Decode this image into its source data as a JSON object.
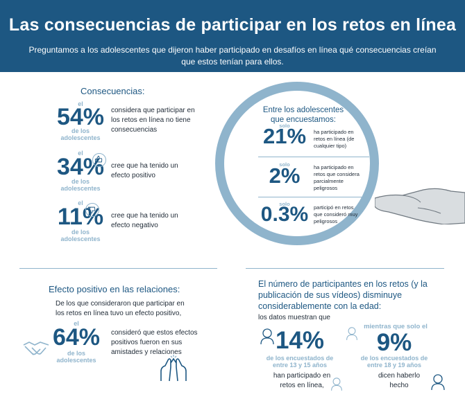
{
  "header": {
    "title": "Las consecuencias de participar en los retos en línea",
    "subtitle": "Preguntamos a los adolescentes que dijeron haber participado en desafíos en línea qué consecuencias creían que estos tenían para ellos."
  },
  "consequences": {
    "heading": "Consecuencias:",
    "items": [
      {
        "prefix": "el",
        "pct": "54%",
        "suffix": "de los adolescentes",
        "text": "considera que participar en los retos en línea no tiene consecuencias"
      },
      {
        "prefix": "el",
        "pct": "34%",
        "suffix": "de los adolescentes",
        "text": "cree que ha tenido un efecto positivo",
        "icon": "thumbs-up-icon"
      },
      {
        "prefix": "el",
        "pct": "11%",
        "suffix": "de los adolescentes",
        "text": "cree que ha tenido un efecto negativo",
        "icon": "thumbs-down-icon"
      }
    ]
  },
  "lens": {
    "heading": "Entre los adolescentes que encuestamos:",
    "items": [
      {
        "prefix": "solo",
        "pct": "21%",
        "text": "ha participado en retos en línea (de cualquier tipo)"
      },
      {
        "prefix": "solo",
        "pct": "2%",
        "text": "ha participado en retos que considera parcialmente peligrosos"
      },
      {
        "prefix": "solo",
        "pct": "0.3%",
        "text": "participó en retos que consideró muy peligrosos"
      }
    ]
  },
  "positive": {
    "heading": "Efecto positivo en las relaciones:",
    "intro": "De los que consideraron que participar en los retos en línea tuvo un efecto positivo,",
    "prefix": "el",
    "pct": "64%",
    "suffix": "de los adolescentes",
    "text": "consideró que estos efectos positivos fueron en sus amistades y relaciones"
  },
  "participants": {
    "heading": "El número de participantes en los retos (y la publicación de sus vídeos) disminuye considerablemente con la edad:",
    "intro": "los datos muestran que",
    "left": {
      "pct": "14%",
      "sub": "de los encuestados de entre 13 y 15 años",
      "text": "han participado en retos en línea,"
    },
    "right": {
      "lead": "mientras que solo el",
      "pct": "9%",
      "sub": "de los encuestados de entre 18 y 19 años",
      "text": "dicen haberlo hecho"
    }
  },
  "colors": {
    "primary": "#1d5782",
    "accent": "#8fb4cc"
  }
}
